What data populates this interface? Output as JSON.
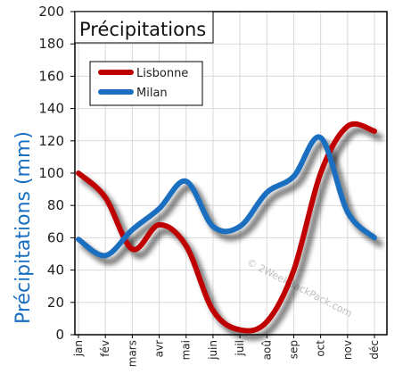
{
  "chart_data": {
    "type": "line",
    "title": "Précipitations",
    "ylabel": "Précipitations (mm)",
    "xlabel": "",
    "categories": [
      "jan",
      "fév",
      "mars",
      "avr",
      "mai",
      "juin",
      "juil",
      "aoû",
      "sep",
      "oct",
      "nov",
      "déc"
    ],
    "ylim": [
      0,
      200
    ],
    "yticks": [
      0,
      20,
      40,
      60,
      80,
      100,
      120,
      140,
      160,
      180,
      200
    ],
    "grid": true,
    "legend": "top-left",
    "series": [
      {
        "name": "Lisbonne",
        "color": "#c00000",
        "values": [
          100,
          85,
          53,
          68,
          55,
          15,
          3,
          8,
          40,
          100,
          129,
          126
        ]
      },
      {
        "name": "Milan",
        "color": "#1a6fc0",
        "values": [
          59,
          49,
          65,
          78,
          95,
          67,
          67,
          88,
          98,
          122,
          76,
          60
        ]
      }
    ],
    "watermark": "© 2WeekBackPack.com"
  }
}
